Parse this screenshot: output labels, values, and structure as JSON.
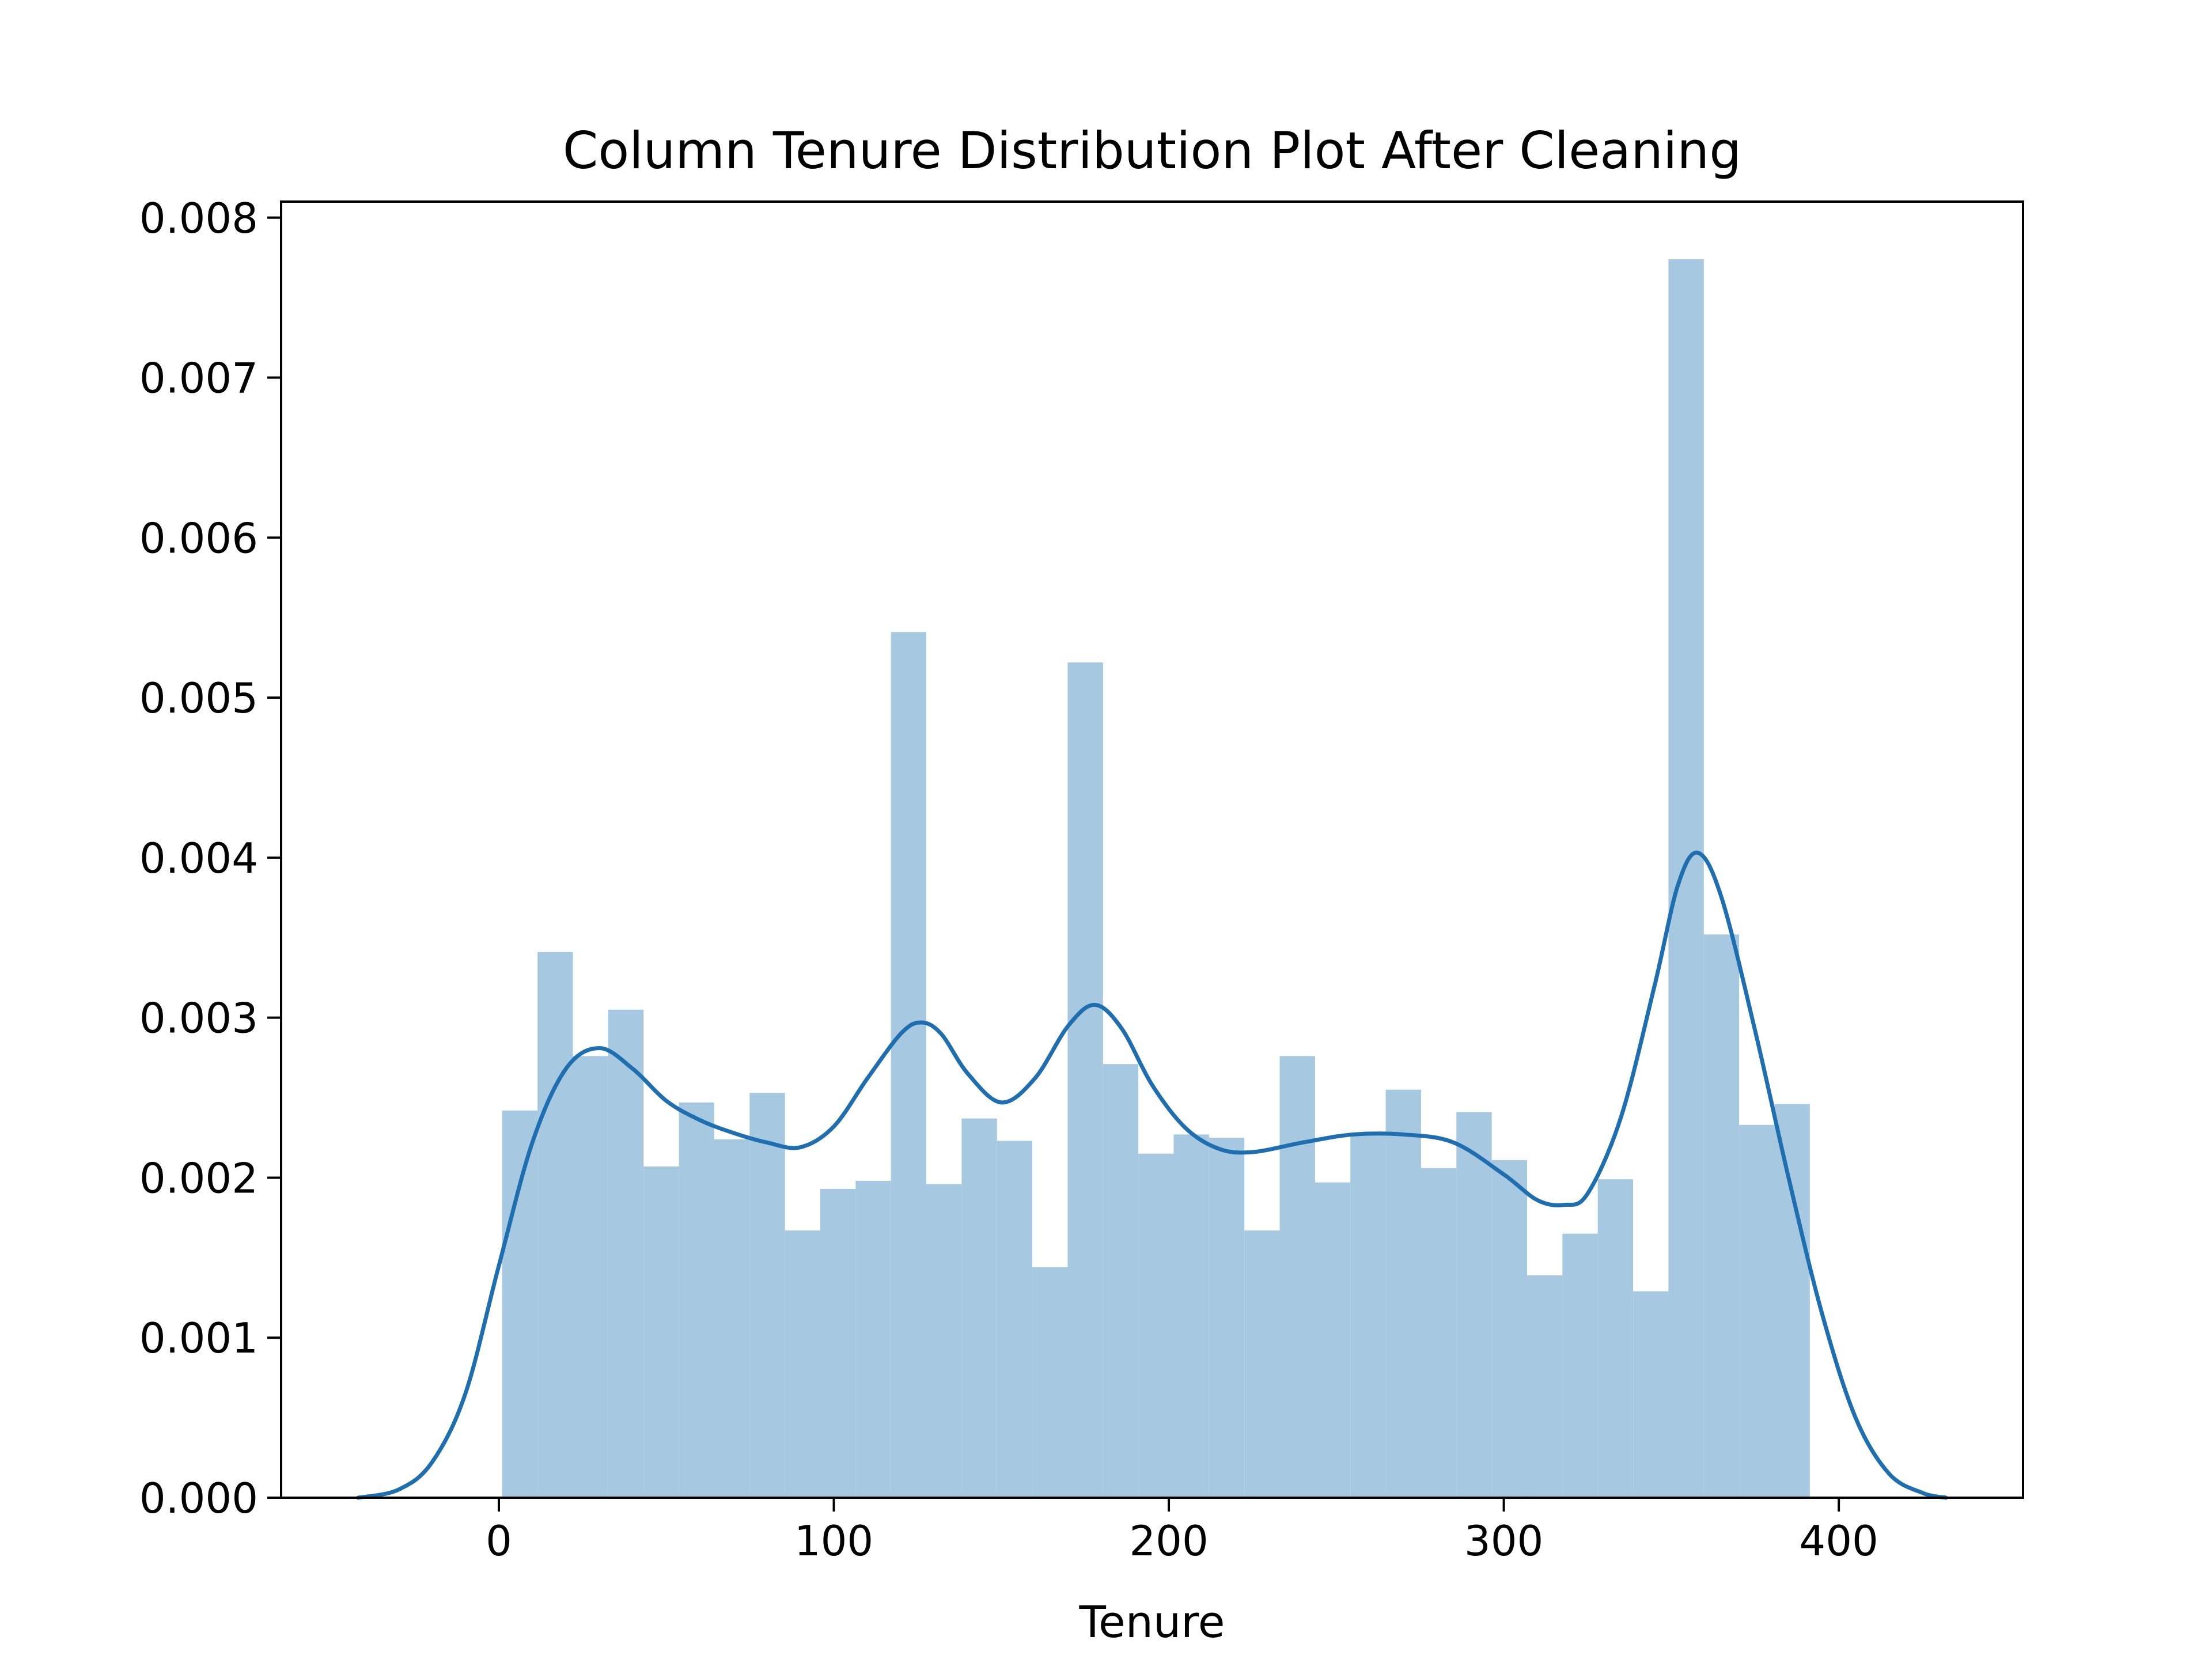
{
  "chart_data": {
    "type": "bar",
    "title": "Column Tenure Distribution Plot After Cleaning",
    "xlabel": "Tenure",
    "ylabel": "",
    "xlim": [
      -65,
      455
    ],
    "ylim": [
      0,
      0.0081
    ],
    "xticks": [
      0,
      100,
      200,
      300,
      400
    ],
    "xtick_labels": [
      "0",
      "100",
      "200",
      "300",
      "400"
    ],
    "yticks": [
      0,
      0.001,
      0.002,
      0.003,
      0.004,
      0.005,
      0.006,
      0.007,
      0.008
    ],
    "ytick_labels": [
      "0.000",
      "0.001",
      "0.002",
      "0.003",
      "0.004",
      "0.005",
      "0.006",
      "0.007",
      "0.008"
    ],
    "grid": false,
    "colors": {
      "histogram": "#a6c8e0",
      "kde": "#1f6fb0",
      "axes": "#000000"
    },
    "histogram": {
      "bin_edges": [
        1,
        11.55,
        22.1,
        32.65,
        43.2,
        53.75,
        64.3,
        74.85,
        85.4,
        95.95,
        106.5,
        117.05,
        127.6,
        138.15,
        148.7,
        159.25,
        169.8,
        180.35,
        190.9,
        201.45,
        212,
        222.55,
        233.1,
        243.65,
        254.2,
        264.75,
        275.3,
        285.85,
        296.4,
        306.95,
        317.5,
        328.05,
        338.6,
        349.15,
        359.7,
        370.25,
        380.8,
        391.35
      ],
      "values": [
        0.00242,
        0.00341,
        0.00276,
        0.00305,
        0.00207,
        0.00247,
        0.00224,
        0.00253,
        0.00167,
        0.00193,
        0.00198,
        0.00541,
        0.00196,
        0.00237,
        0.00223,
        0.00144,
        0.00522,
        0.00271,
        0.00215,
        0.00227,
        0.00225,
        0.00167,
        0.00276,
        0.00197,
        0.00228,
        0.00255,
        0.00206,
        0.00241,
        0.00211,
        0.00139,
        0.00165,
        0.00199,
        0.00129,
        0.00774,
        0.00352,
        0.00233,
        0.00246
      ]
    },
    "kde": {
      "x": [
        -42,
        -30,
        -20,
        -10,
        0,
        10,
        20,
        30,
        40,
        50,
        60,
        70,
        80,
        90,
        100,
        110,
        120,
        126,
        132,
        140,
        150,
        160,
        170,
        178,
        186,
        195,
        205,
        215,
        225,
        240,
        255,
        270,
        285,
        300,
        310,
        318,
        325,
        335,
        345,
        352,
        358,
        365,
        375,
        385,
        395,
        405,
        415,
        425,
        432
      ],
      "y": [
        0.0,
        5e-05,
        0.00022,
        0.00065,
        0.00145,
        0.00222,
        0.00268,
        0.00281,
        0.00268,
        0.00248,
        0.00236,
        0.00228,
        0.00222,
        0.00219,
        0.00232,
        0.00262,
        0.0029,
        0.00297,
        0.0029,
        0.00265,
        0.00247,
        0.00262,
        0.00295,
        0.00308,
        0.00293,
        0.00258,
        0.00231,
        0.00218,
        0.00216,
        0.00222,
        0.00227,
        0.00227,
        0.00222,
        0.00202,
        0.00186,
        0.00183,
        0.0019,
        0.00238,
        0.0032,
        0.00383,
        0.00403,
        0.00375,
        0.00292,
        0.002,
        0.00115,
        0.0005,
        0.00015,
        3e-05,
        0.0
      ]
    }
  }
}
